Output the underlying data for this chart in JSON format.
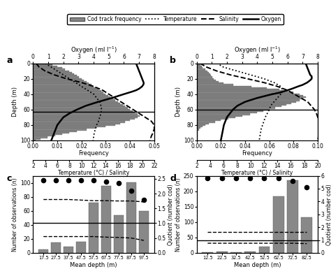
{
  "legend_labels": [
    "Cod track frequency",
    "Temperature",
    "Salinity",
    "Oxygen"
  ],
  "panel_a": {
    "label": "a",
    "depth": [
      0,
      2,
      4,
      6,
      8,
      10,
      12,
      14,
      16,
      18,
      20,
      22,
      24,
      26,
      28,
      30,
      32,
      34,
      36,
      38,
      40,
      42,
      44,
      46,
      48,
      50,
      52,
      54,
      56,
      58,
      60,
      62,
      64,
      66,
      68,
      70,
      72,
      74,
      76,
      78,
      80,
      82,
      84,
      86,
      88,
      90,
      92,
      94,
      96,
      98,
      100
    ],
    "frequency": [
      0.005,
      0.008,
      0.01,
      0.012,
      0.013,
      0.015,
      0.016,
      0.017,
      0.018,
      0.019,
      0.02,
      0.021,
      0.022,
      0.023,
      0.024,
      0.025,
      0.026,
      0.027,
      0.028,
      0.029,
      0.03,
      0.031,
      0.032,
      0.033,
      0.034,
      0.035,
      0.036,
      0.037,
      0.038,
      0.039,
      0.04,
      0.041,
      0.042,
      0.043,
      0.044,
      0.043,
      0.042,
      0.04,
      0.038,
      0.036,
      0.034,
      0.03,
      0.026,
      0.022,
      0.018,
      0.015,
      0.012,
      0.009,
      0.006,
      0.003,
      0.001
    ],
    "freq_xlim": [
      0,
      0.05
    ],
    "freq_xticks": [
      0.0,
      0.01,
      0.02,
      0.03,
      0.04,
      0.05
    ],
    "depth_ylim": [
      100,
      0
    ],
    "oxygen_depth": [
      0,
      5,
      10,
      15,
      20,
      25,
      27,
      30,
      33,
      35,
      37,
      40,
      45,
      50,
      55,
      60,
      65,
      70,
      75,
      80,
      85,
      90,
      95,
      100
    ],
    "oxygen": [
      6.8,
      6.9,
      7.0,
      7.1,
      7.2,
      7.3,
      7.3,
      7.2,
      7.0,
      6.8,
      6.5,
      6.0,
      5.2,
      4.3,
      3.5,
      2.9,
      2.4,
      2.0,
      1.8,
      1.6,
      1.5,
      1.4,
      1.3,
      1.2
    ],
    "temp_depth": [
      0,
      5,
      10,
      15,
      20,
      25,
      30,
      35,
      40,
      45,
      50,
      55,
      60,
      65,
      70,
      75,
      80,
      85,
      90,
      95,
      100
    ],
    "temperature": [
      4,
      5,
      6,
      7,
      8,
      9,
      10,
      11,
      12,
      12.5,
      13,
      13.2,
      13.3,
      13.2,
      13.0,
      12.8,
      12.5,
      12.3,
      12.1,
      12.0,
      11.9
    ],
    "sal_depth": [
      0,
      5,
      10,
      15,
      20,
      25,
      30,
      35,
      40,
      45,
      50,
      55,
      60,
      65,
      70,
      75,
      80,
      85,
      90,
      95,
      100
    ],
    "salinity": [
      2.5,
      3.0,
      4.0,
      5.5,
      7.5,
      10.0,
      12.0,
      13.5,
      14.5,
      15.5,
      16.5,
      17.5,
      18.5,
      19.5,
      20.5,
      21.5,
      22.0,
      22.0,
      21.8,
      21.5,
      21.3
    ],
    "oxy_xlim": [
      0,
      8
    ],
    "temp_sal_xlim": [
      2,
      22
    ],
    "temp_sal_xticks": [
      2,
      4,
      6,
      8,
      10,
      12,
      14,
      16,
      18,
      20,
      22
    ],
    "hline_depth": 63
  },
  "panel_b": {
    "label": "b",
    "depth": [
      0,
      2,
      4,
      6,
      8,
      10,
      12,
      14,
      16,
      18,
      20,
      22,
      24,
      26,
      28,
      30,
      32,
      34,
      36,
      38,
      40,
      42,
      44,
      46,
      48,
      50,
      52,
      54,
      56,
      58,
      60,
      62,
      64,
      66,
      68,
      70,
      72,
      74,
      76,
      78,
      80,
      82,
      84,
      86,
      88,
      90,
      92,
      94,
      96,
      98,
      100
    ],
    "frequency": [
      0.002,
      0.003,
      0.004,
      0.005,
      0.007,
      0.009,
      0.01,
      0.011,
      0.012,
      0.013,
      0.014,
      0.016,
      0.018,
      0.022,
      0.03,
      0.045,
      0.058,
      0.068,
      0.075,
      0.08,
      0.085,
      0.088,
      0.09,
      0.088,
      0.085,
      0.082,
      0.078,
      0.074,
      0.07,
      0.065,
      0.06,
      0.055,
      0.05,
      0.044,
      0.038,
      0.032,
      0.026,
      0.02,
      0.015,
      0.01,
      0.007,
      0.005,
      0.003,
      0.002,
      0.001,
      0.001,
      0.001,
      0.001,
      0.001,
      0.001,
      0.001
    ],
    "freq_xlim": [
      0,
      0.1
    ],
    "freq_xticks": [
      0.0,
      0.02,
      0.04,
      0.06,
      0.08,
      0.1
    ],
    "depth_ylim": [
      100,
      0
    ],
    "oxygen_depth": [
      0,
      5,
      10,
      15,
      17,
      20,
      22,
      25,
      28,
      30,
      33,
      35,
      38,
      40,
      45,
      50,
      55,
      60,
      65,
      70,
      75,
      80,
      85,
      90,
      95,
      100
    ],
    "oxygen": [
      7.2,
      7.3,
      7.4,
      7.5,
      7.6,
      7.6,
      7.5,
      7.3,
      7.0,
      6.7,
      6.3,
      6.0,
      5.5,
      5.0,
      4.0,
      3.2,
      2.7,
      2.4,
      2.2,
      2.0,
      1.9,
      1.8,
      1.75,
      1.7,
      1.65,
      1.6
    ],
    "temp_depth": [
      0,
      5,
      10,
      15,
      20,
      25,
      30,
      35,
      40,
      45,
      50,
      55,
      60,
      65,
      70,
      75,
      80,
      85,
      90,
      95,
      100
    ],
    "temperature": [
      5,
      6,
      8,
      10,
      12,
      13.5,
      14.5,
      14.8,
      14.5,
      14.0,
      13.5,
      13.0,
      12.8,
      12.5,
      12.2,
      12.0,
      11.8,
      11.6,
      11.5,
      11.4,
      11.3
    ],
    "sal_depth": [
      0,
      5,
      10,
      15,
      20,
      25,
      30,
      35,
      40,
      45,
      50,
      55,
      60,
      65,
      70,
      75,
      80,
      85,
      90,
      95,
      100
    ],
    "salinity": [
      2.5,
      3.5,
      5.0,
      7.0,
      9.5,
      12.0,
      14.0,
      15.5,
      16.5,
      17.5,
      18.5,
      19.0,
      19.5,
      19.8,
      20.0,
      20.2,
      20.3,
      20.3,
      20.2,
      20.1,
      20.0
    ],
    "oxy_xlim": [
      0,
      8
    ],
    "temp_sal_xlim": [
      2,
      20
    ],
    "temp_sal_xticks": [
      2,
      4,
      6,
      8,
      10,
      12,
      14,
      16,
      18,
      20
    ],
    "hline_depth": 60
  },
  "panel_c": {
    "label": "c",
    "categories": [
      17.5,
      27.5,
      37.5,
      47.5,
      57.5,
      67.5,
      77.5,
      87.5,
      97.5
    ],
    "bar_values": [
      5,
      15,
      9,
      16,
      72,
      96,
      54,
      101,
      60
    ],
    "dots_y": [
      2.45,
      2.45,
      2.45,
      2.45,
      2.45,
      2.4,
      2.35,
      2.1,
      1.8
    ],
    "dot_last": [
      0.85,
      0.7
    ],
    "dashed_upper": [
      1.8,
      1.8,
      1.8,
      1.78,
      1.76,
      1.76,
      1.75,
      1.75,
      1.72
    ],
    "dashed_lower": [
      0.55,
      0.55,
      0.55,
      0.55,
      0.55,
      0.53,
      0.52,
      0.5,
      0.42
    ],
    "hline_y": 1.0,
    "ylim_left": [
      0,
      110
    ],
    "ylim_right": [
      0,
      2.6
    ],
    "yticks_left": [
      0,
      20,
      40,
      60,
      80,
      100
    ],
    "yticks_right": [
      0.0,
      0.5,
      1.0,
      1.5,
      2.0,
      2.5
    ],
    "xlabel": "Mean depth (m)",
    "ylabel_left": "Number of observations (n)",
    "ylabel_right": "Quotient (number cod)"
  },
  "panel_d": {
    "label": "d",
    "categories": [
      12.5,
      22.5,
      32.5,
      42.5,
      52.5,
      62.5,
      72.5,
      82.5
    ],
    "bar_values": [
      2,
      5,
      3,
      5,
      20,
      183,
      235,
      115
    ],
    "dots_y": [
      5.8,
      5.8,
      5.8,
      5.8,
      5.8,
      5.8,
      5.6,
      5.1
    ],
    "dot_last": [
      4.2,
      3.3
    ],
    "dashed_upper": [
      1.6,
      1.6,
      1.6,
      1.6,
      1.6,
      1.6,
      1.6,
      1.6
    ],
    "dashed_lower": [
      0.75,
      0.75,
      0.75,
      0.75,
      0.75,
      0.75,
      0.75,
      0.72
    ],
    "hline_y": 1.0,
    "ylim_left": [
      0,
      250
    ],
    "ylim_right": [
      0,
      6
    ],
    "yticks_left": [
      0,
      50,
      100,
      150,
      200,
      250
    ],
    "yticks_right": [
      0,
      1,
      2,
      3,
      4,
      5,
      6
    ],
    "xlabel": "Mean depth (m)",
    "ylabel_left": "Number of observations (n)",
    "ylabel_right": "Quotient (number cod)"
  },
  "bar_color": "#888888",
  "bar_edgecolor": "#555555",
  "background": "#ffffff"
}
